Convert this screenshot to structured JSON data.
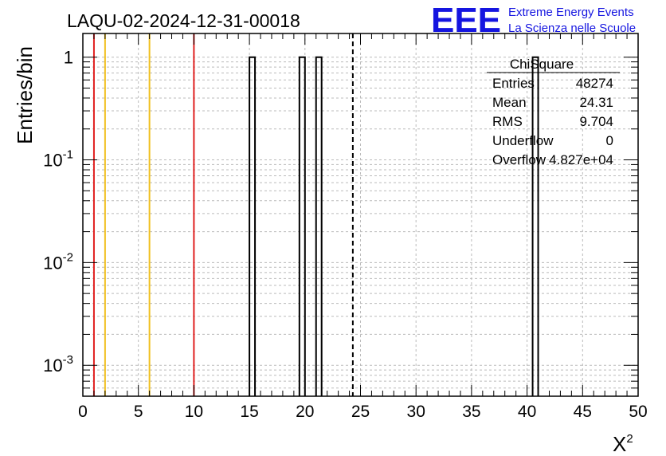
{
  "title": "LAQU-02-2024-12-31-00018",
  "logo": {
    "letters": "EEE",
    "line1": "Extreme Energy Events",
    "line2": "La Scienza nelle Scuole",
    "color": "#1515e0"
  },
  "stats_box": {
    "name": "ChiSquare",
    "rows": [
      {
        "label": "Entries",
        "value": "48274"
      },
      {
        "label": "Mean",
        "value": "24.31"
      },
      {
        "label": "RMS",
        "value": "9.704"
      },
      {
        "label": "Underflow",
        "value": "0"
      },
      {
        "label": "Overflow",
        "value": "4.827e+04"
      }
    ]
  },
  "chart_data": {
    "type": "bar",
    "title": "LAQU-02-2024-12-31-00018",
    "xlabel": "X",
    "xlabel_sup": "2",
    "ylabel": "Entries/bin",
    "xlim": [
      0,
      50
    ],
    "ylim": [
      0.0005,
      1.7
    ],
    "yscale": "log",
    "grid": true,
    "x_ticks": [
      0,
      5,
      10,
      15,
      20,
      25,
      30,
      35,
      40,
      45,
      50
    ],
    "y_ticks": [
      {
        "value": 0.001,
        "base": "10",
        "exp": "-3"
      },
      {
        "value": 0.01,
        "base": "10",
        "exp": "-2"
      },
      {
        "value": 0.1,
        "base": "10",
        "exp": "-1"
      },
      {
        "value": 1,
        "base": "1",
        "exp": ""
      }
    ],
    "bins": [
      {
        "x0": 15.0,
        "x1": 15.5,
        "value": 1
      },
      {
        "x0": 19.5,
        "x1": 20.0,
        "value": 1
      },
      {
        "x0": 21.0,
        "x1": 21.5,
        "value": 1
      },
      {
        "x0": 40.5,
        "x1": 41.0,
        "value": 1
      }
    ],
    "reference_lines": [
      {
        "x": 1,
        "color": "#e02020",
        "style": "solid"
      },
      {
        "x": 2,
        "color": "#f0c020",
        "style": "solid"
      },
      {
        "x": 6,
        "color": "#f0c020",
        "style": "solid"
      },
      {
        "x": 10,
        "color": "#e02020",
        "style": "solid"
      },
      {
        "x": 24.31,
        "color": "#000000",
        "style": "dashed"
      }
    ]
  }
}
